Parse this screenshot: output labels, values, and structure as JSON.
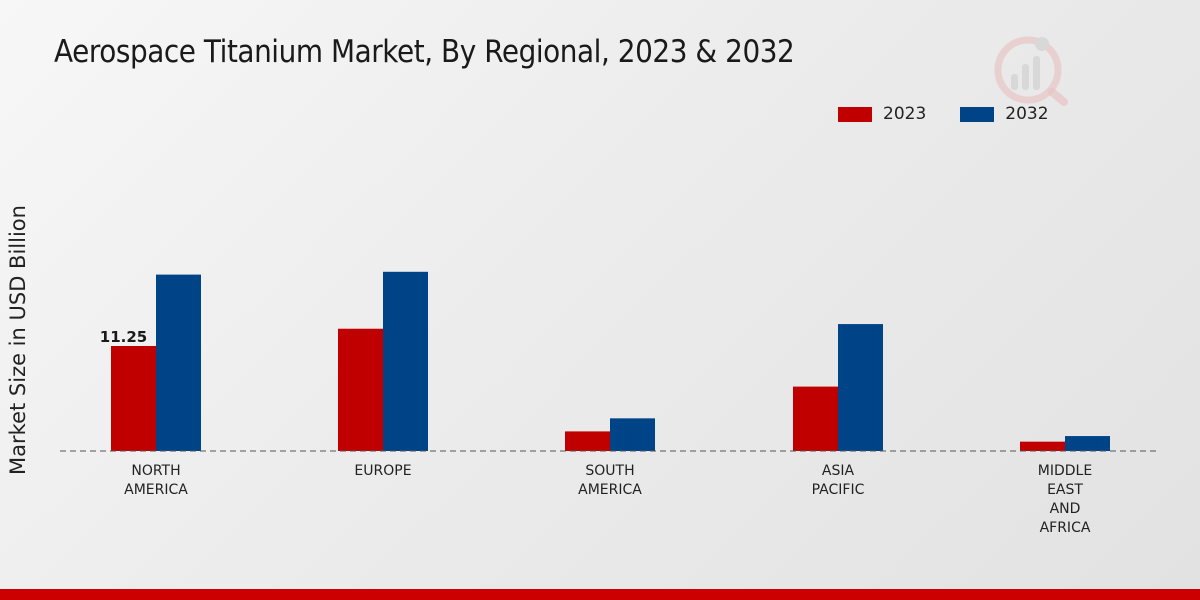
{
  "colors": {
    "series_2023": "#c00000",
    "series_2032": "#004488",
    "footer": "#cc0000"
  },
  "chart_data": {
    "type": "bar",
    "title": "Aerospace Titanium Market, By Regional, 2023 & 2032",
    "xlabel": "",
    "ylabel": "Market Size in USD Billion",
    "categories": [
      "NORTH\nAMERICA",
      "EUROPE",
      "SOUTH\nAMERICA",
      "ASIA\nPACIFIC",
      "MIDDLE\nEAST\nAND\nAFRICA"
    ],
    "series": [
      {
        "name": "2023",
        "values": [
          11.25,
          13.1,
          2.1,
          6.9,
          1.0
        ]
      },
      {
        "name": "2032",
        "values": [
          18.9,
          19.2,
          3.5,
          13.6,
          1.6
        ]
      }
    ],
    "data_labels": [
      {
        "series": 0,
        "category": 0,
        "text": "11.25"
      }
    ],
    "ylim": [
      0,
      30
    ],
    "grid": false,
    "legend": "top-right"
  }
}
